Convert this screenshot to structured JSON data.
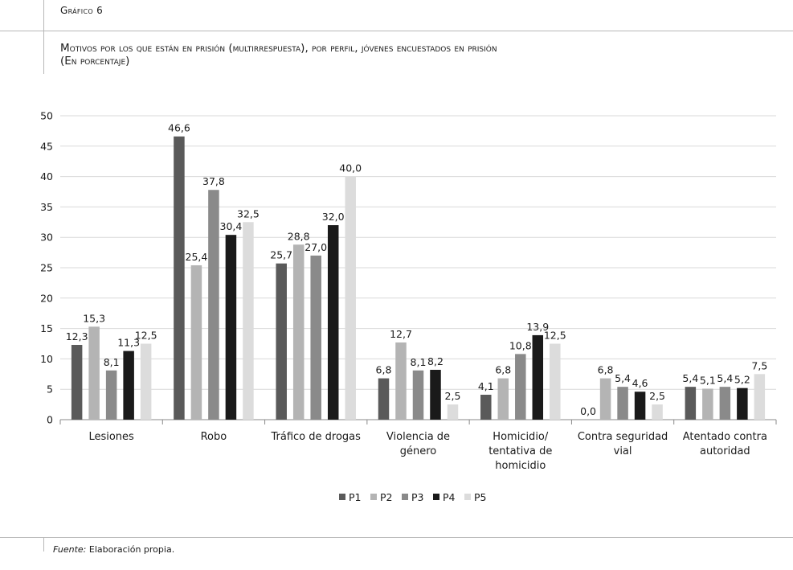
{
  "header": {
    "figure_label": "Gráfico 6"
  },
  "title_lines": [
    "Motivos por los que están en prisión (multirrespuesta), por perfil, jóvenes encuestados en prisión",
    "(En porcentaje)"
  ],
  "source": {
    "prefix": "Fuente:",
    "text": "Elaboración propia."
  },
  "chart_data": {
    "type": "bar",
    "title": "Motivos por los que están en prisión (multirrespuesta), por perfil, jóvenes encuestados en prisión",
    "subtitle": "(En porcentaje)",
    "xlabel": "",
    "ylabel": "",
    "ylim": [
      0,
      50
    ],
    "yticks": [
      0,
      5,
      10,
      15,
      20,
      25,
      30,
      35,
      40,
      45,
      50
    ],
    "grid": true,
    "legend_position": "bottom",
    "categories": [
      [
        "Lesiones"
      ],
      [
        "Robo"
      ],
      [
        "Tráfico de drogas"
      ],
      [
        "Violencia de",
        "género"
      ],
      [
        "Homicidio/",
        "tentativa de",
        "homicidio"
      ],
      [
        "Contra seguridad",
        "vial"
      ],
      [
        "Atentado contra",
        "autoridad"
      ]
    ],
    "series": [
      {
        "name": "P1",
        "color": "#5a5a5a",
        "values": [
          12.3,
          46.6,
          25.7,
          6.8,
          4.1,
          0.0,
          5.4
        ],
        "labels": [
          "12,3",
          "46,6",
          "25,7",
          "6,8",
          "4,1",
          "0,0",
          "5,4"
        ]
      },
      {
        "name": "P2",
        "color": "#b4b4b4",
        "values": [
          15.3,
          25.4,
          28.8,
          12.7,
          6.8,
          6.8,
          5.1
        ],
        "labels": [
          "15,3",
          "25,4",
          "28,8",
          "12,7",
          "6,8",
          "6,8",
          "5,1"
        ]
      },
      {
        "name": "P3",
        "color": "#8a8a8a",
        "values": [
          8.1,
          37.8,
          27.0,
          8.1,
          10.8,
          5.4,
          5.4
        ],
        "labels": [
          "8,1",
          "37,8",
          "27,0",
          "8,1",
          "10,8",
          "5,4",
          "5,4"
        ]
      },
      {
        "name": "P4",
        "color": "#1a1a1a",
        "values": [
          11.3,
          30.4,
          32.0,
          8.2,
          13.9,
          4.6,
          5.2
        ],
        "labels": [
          "11,3",
          "30,4",
          "32,0",
          "8,2",
          "13,9",
          "4,6",
          "5,2"
        ]
      },
      {
        "name": "P5",
        "color": "#dcdcdc",
        "values": [
          12.5,
          32.5,
          40.0,
          2.5,
          12.5,
          2.5,
          7.5
        ],
        "labels": [
          "12,5",
          "32,5",
          "40,0",
          "2,5",
          "12,5",
          "2,5",
          "7,5"
        ]
      }
    ]
  }
}
